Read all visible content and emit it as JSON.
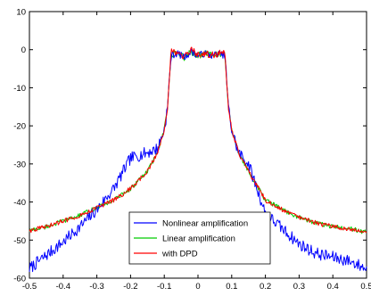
{
  "chart_data": {
    "type": "line",
    "title": "",
    "xlabel": "",
    "ylabel": "",
    "xlim": [
      -0.5,
      0.5
    ],
    "ylim": [
      -60,
      10
    ],
    "x_ticks": [
      -0.5,
      -0.4,
      -0.3,
      -0.2,
      -0.1,
      0,
      0.1,
      0.2,
      0.3,
      0.4,
      0.5
    ],
    "x_tick_labels": [
      "-0.5",
      "-0.4",
      "-0.3",
      "-0.2",
      "-0.1",
      "0",
      "0.1",
      "0.2",
      "0.3",
      "0.4",
      "0.5"
    ],
    "y_ticks": [
      10,
      0,
      -10,
      -20,
      -30,
      -40,
      -50,
      -60
    ],
    "y_tick_labels": [
      "10",
      "0",
      "-10",
      "-20",
      "-30",
      "-40",
      "-50",
      "-60"
    ],
    "grid": false,
    "legend_position": "bottom-center",
    "series": [
      {
        "name": "Nonlinear amplification",
        "color": "#0000ff",
        "x": [
          -0.5,
          -0.45,
          -0.4,
          -0.35,
          -0.3,
          -0.25,
          -0.2,
          -0.15,
          -0.12,
          -0.1,
          -0.09,
          -0.085,
          -0.08,
          -0.06,
          -0.04,
          -0.02,
          0,
          0.02,
          0.04,
          0.06,
          0.08,
          0.085,
          0.09,
          0.1,
          0.12,
          0.15,
          0.2,
          0.25,
          0.3,
          0.35,
          0.4,
          0.45,
          0.5
        ],
        "values": [
          -57.5,
          -54,
          -50.5,
          -46.5,
          -42,
          -36.5,
          -28.5,
          -27,
          -26,
          -21,
          -15,
          -8,
          -1.5,
          -1,
          -2,
          -0.5,
          -1.5,
          -1,
          -1.5,
          -1,
          -1.5,
          -8,
          -15,
          -21,
          -27,
          -30,
          -43,
          -47,
          -51,
          -53.5,
          -54.5,
          -55.5,
          -57.5
        ]
      },
      {
        "name": "Linear amplification",
        "color": "#00cc00",
        "x": [
          -0.5,
          -0.45,
          -0.4,
          -0.35,
          -0.3,
          -0.25,
          -0.2,
          -0.15,
          -0.12,
          -0.1,
          -0.09,
          -0.085,
          -0.08,
          -0.06,
          -0.04,
          -0.02,
          0,
          0.02,
          0.04,
          0.06,
          0.08,
          0.085,
          0.09,
          0.1,
          0.12,
          0.15,
          0.2,
          0.25,
          0.3,
          0.35,
          0.4,
          0.45,
          0.5
        ],
        "values": [
          -47.5,
          -46.5,
          -45,
          -43.5,
          -41.5,
          -39.5,
          -36.5,
          -32,
          -27,
          -21,
          -15,
          -8,
          -1.5,
          -1,
          -2,
          -0.5,
          -1.5,
          -1,
          -1.5,
          -1,
          -1.5,
          -8,
          -15,
          -21,
          -27,
          -32,
          -39.5,
          -42,
          -44,
          -45.5,
          -46.5,
          -47,
          -48
        ]
      },
      {
        "name": "with DPD",
        "color": "#ff0000",
        "x": [
          -0.5,
          -0.45,
          -0.4,
          -0.35,
          -0.3,
          -0.25,
          -0.2,
          -0.15,
          -0.12,
          -0.1,
          -0.09,
          -0.085,
          -0.08,
          -0.06,
          -0.04,
          -0.02,
          0,
          0.02,
          0.04,
          0.06,
          0.08,
          0.085,
          0.09,
          0.1,
          0.12,
          0.15,
          0.2,
          0.25,
          0.3,
          0.35,
          0.4,
          0.45,
          0.5
        ],
        "values": [
          -47.5,
          -46.5,
          -45,
          -43.5,
          -41.5,
          -39.5,
          -36.5,
          -32,
          -27,
          -21,
          -15,
          -8,
          -0.5,
          -1,
          -2,
          0,
          -1.5,
          -1,
          -1.5,
          -1,
          -1,
          -8,
          -15,
          -21,
          -27,
          -32,
          -39.5,
          -42,
          -44,
          -45.5,
          -46.5,
          -47,
          -48
        ]
      }
    ]
  }
}
